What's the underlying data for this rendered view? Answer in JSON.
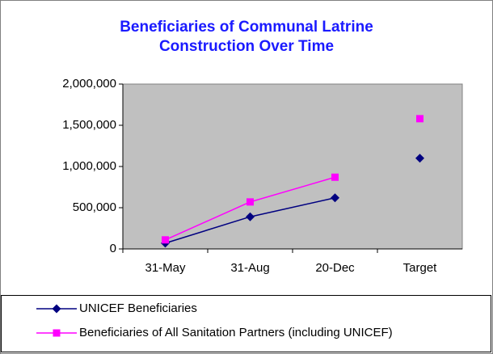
{
  "chart_data": {
    "type": "line",
    "title": "Beneficiaries of Communal Latrine Construction Over Time",
    "categories": [
      "31-May",
      "31-Aug",
      "20-Dec",
      "Target"
    ],
    "series": [
      {
        "name": "UNICEF Beneficiaries",
        "color": "#000080",
        "marker": "diamond",
        "values": [
          70000,
          390000,
          620000,
          1100000
        ]
      },
      {
        "name": "Beneficiaries of All Sanitation Partners (including UNICEF)",
        "color": "#ff00ff",
        "marker": "square",
        "values": [
          110000,
          570000,
          870000,
          1580000
        ]
      }
    ],
    "ylim": [
      0,
      2000000
    ],
    "yticks": [
      0,
      {
        "value": 500000,
        "label": "500,000"
      },
      {
        "value": 1000000,
        "label": "1,000,000"
      },
      {
        "value": 1500000,
        "label": "1,500,000"
      },
      {
        "value": 2000000,
        "label": "2,000,000"
      }
    ],
    "plot_background": "#c0c0c0",
    "legend": "bottom"
  }
}
